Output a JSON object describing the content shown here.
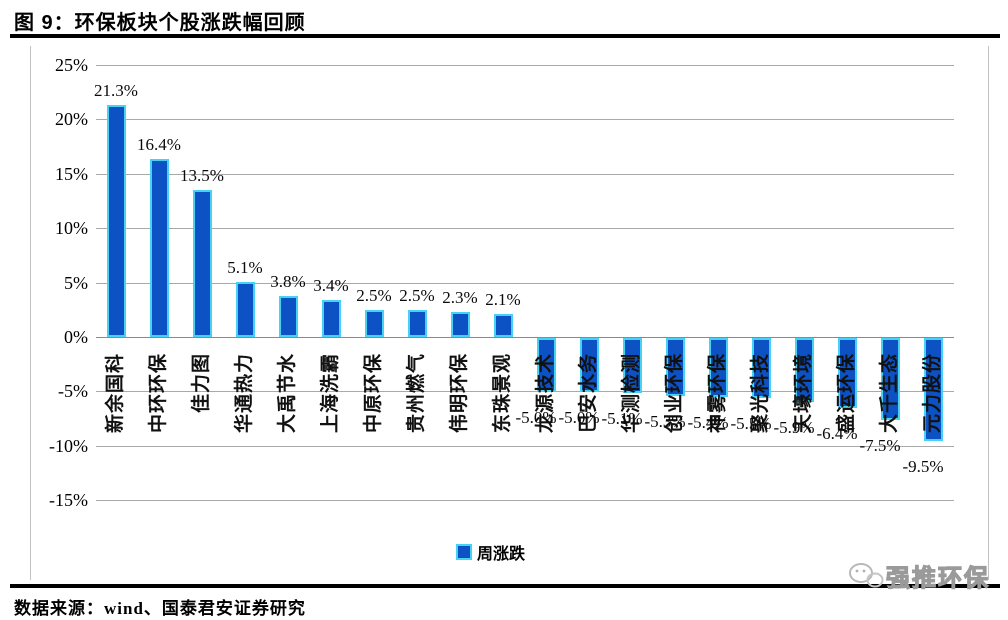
{
  "header": {
    "title": "图 9：环保板块个股涨跌幅回顾"
  },
  "chart_data": {
    "type": "bar",
    "title": "环保板块个股涨跌幅回顾",
    "legend_label": "周涨跌",
    "legend_position": "bottom-center",
    "grid": true,
    "ylim": [
      -15,
      25
    ],
    "ytick_labels": [
      "25%",
      "20%",
      "15%",
      "10%",
      "5%",
      "0%",
      "-5%",
      "-10%",
      "-15%"
    ],
    "ytick_values": [
      25,
      20,
      15,
      10,
      5,
      0,
      -5,
      -10,
      -15
    ],
    "xlabel": "",
    "ylabel": "",
    "bar_color": "#0c52c4",
    "bar_edge_color": "#45d2f5",
    "categories": [
      "新余国科",
      "中环环保",
      "佳力图",
      "华通热力",
      "大禹节水",
      "上海洗霸",
      "中原环保",
      "贵州燃气",
      "伟明环保",
      "东珠景观",
      "龙源技术",
      "巴安水务",
      "华测检测",
      "创业环保",
      "神雾环保",
      "聚光科技",
      "天壕环境",
      "盛运环保",
      "大千生态",
      "元力股份"
    ],
    "values": [
      21.3,
      16.4,
      13.5,
      5.1,
      3.8,
      3.4,
      2.5,
      2.5,
      2.3,
      2.1,
      -5.0,
      -5.0,
      -5.1,
      -5.3,
      -5.4,
      -5.5,
      -5.9,
      -6.4,
      -7.5,
      -9.5
    ],
    "value_labels": [
      "21.3%",
      "16.4%",
      "13.5%",
      "5.1%",
      "3.8%",
      "3.4%",
      "2.5%",
      "2.5%",
      "2.3%",
      "2.1%",
      "-5.0%",
      "-5.0%",
      "-5.1%",
      "-5.3%",
      "-5.4%",
      "-5.5%",
      "-5.9%",
      "-6.4%",
      "-7.5%",
      "-9.5%"
    ]
  },
  "legend": {
    "label": "周涨跌"
  },
  "footer": {
    "source": "数据来源：wind、国泰君安证券研究"
  },
  "watermark": {
    "text": "强推环保"
  }
}
